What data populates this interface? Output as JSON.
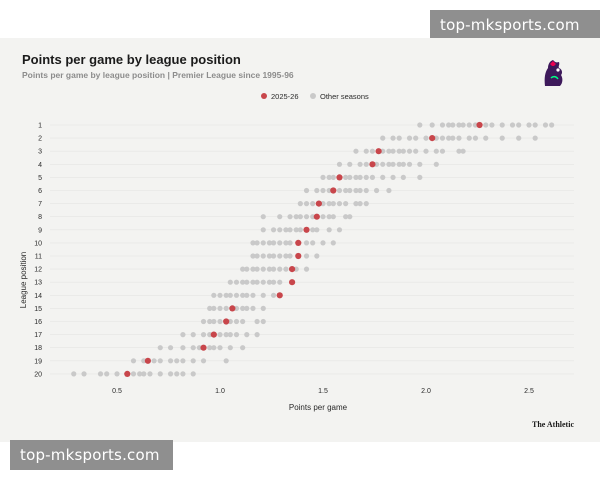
{
  "watermark_top": "top-mksports.com",
  "watermark_bottom": "top-mksports.com",
  "logo_icon": "premier-league-lion-icon",
  "chart_data": {
    "type": "scatter",
    "title": "Points per game by league position",
    "subtitle": "Points per game by league position | Premier League since 1995-96",
    "xlabel": "Points per game",
    "ylabel": "League position",
    "xlim": [
      0.2,
      2.7
    ],
    "xticks": [
      "0.5",
      "1.0",
      "1.5",
      "2.0",
      "2.5"
    ],
    "xtick_values": [
      0.5,
      1.0,
      1.5,
      2.0,
      2.5
    ],
    "positions": [
      1,
      2,
      3,
      4,
      5,
      6,
      7,
      8,
      9,
      10,
      11,
      12,
      13,
      14,
      15,
      16,
      17,
      18,
      19,
      20
    ],
    "grid": true,
    "legend_position": "top-center",
    "source": "The Athletic",
    "colors": {
      "current": "#c8464b",
      "other": "#c9c9c9"
    },
    "series": [
      {
        "name": "2025-26",
        "points": [
          {
            "position": 1,
            "ppg": 2.26
          },
          {
            "position": 2,
            "ppg": 2.03
          },
          {
            "position": 3,
            "ppg": 1.77
          },
          {
            "position": 4,
            "ppg": 1.74
          },
          {
            "position": 5,
            "ppg": 1.58
          },
          {
            "position": 6,
            "ppg": 1.55
          },
          {
            "position": 7,
            "ppg": 1.48
          },
          {
            "position": 8,
            "ppg": 1.47
          },
          {
            "position": 9,
            "ppg": 1.42
          },
          {
            "position": 10,
            "ppg": 1.38
          },
          {
            "position": 11,
            "ppg": 1.38
          },
          {
            "position": 12,
            "ppg": 1.35
          },
          {
            "position": 13,
            "ppg": 1.35
          },
          {
            "position": 14,
            "ppg": 1.29
          },
          {
            "position": 15,
            "ppg": 1.06
          },
          {
            "position": 16,
            "ppg": 1.03
          },
          {
            "position": 17,
            "ppg": 0.97
          },
          {
            "position": 18,
            "ppg": 0.92
          },
          {
            "position": 19,
            "ppg": 0.65
          },
          {
            "position": 20,
            "ppg": 0.55
          }
        ]
      },
      {
        "name": "Other seasons",
        "points_by_position": [
          {
            "position": 1,
            "ppg": [
              1.97,
              2.03,
              2.08,
              2.11,
              2.13,
              2.16,
              2.18,
              2.21,
              2.24,
              2.29,
              2.32,
              2.37,
              2.42,
              2.45,
              2.5,
              2.53,
              2.58,
              2.61
            ]
          },
          {
            "position": 2,
            "ppg": [
              1.79,
              1.84,
              1.87,
              1.92,
              1.95,
              2.0,
              2.05,
              2.08,
              2.11,
              2.13,
              2.16,
              2.21,
              2.24,
              2.29,
              2.37,
              2.45,
              2.53
            ]
          },
          {
            "position": 3,
            "ppg": [
              1.66,
              1.71,
              1.74,
              1.79,
              1.82,
              1.84,
              1.87,
              1.89,
              1.92,
              1.95,
              2.0,
              2.05,
              2.08,
              2.16,
              2.18
            ]
          },
          {
            "position": 4,
            "ppg": [
              1.58,
              1.63,
              1.68,
              1.71,
              1.76,
              1.79,
              1.82,
              1.84,
              1.87,
              1.89,
              1.92,
              1.97,
              2.05
            ]
          },
          {
            "position": 5,
            "ppg": [
              1.5,
              1.53,
              1.55,
              1.61,
              1.63,
              1.66,
              1.68,
              1.71,
              1.74,
              1.79,
              1.84,
              1.89,
              1.97
            ]
          },
          {
            "position": 6,
            "ppg": [
              1.42,
              1.47,
              1.5,
              1.53,
              1.58,
              1.61,
              1.63,
              1.66,
              1.68,
              1.71,
              1.76,
              1.82
            ]
          },
          {
            "position": 7,
            "ppg": [
              1.39,
              1.42,
              1.45,
              1.5,
              1.53,
              1.55,
              1.58,
              1.61,
              1.66,
              1.68,
              1.71
            ]
          },
          {
            "position": 8,
            "ppg": [
              1.21,
              1.29,
              1.34,
              1.37,
              1.39,
              1.42,
              1.45,
              1.5,
              1.53,
              1.55,
              1.61,
              1.63
            ]
          },
          {
            "position": 9,
            "ppg": [
              1.21,
              1.26,
              1.29,
              1.32,
              1.34,
              1.37,
              1.39,
              1.45,
              1.47,
              1.53,
              1.58
            ]
          },
          {
            "position": 10,
            "ppg": [
              1.16,
              1.18,
              1.21,
              1.24,
              1.26,
              1.29,
              1.32,
              1.34,
              1.42,
              1.45,
              1.5,
              1.55
            ]
          },
          {
            "position": 11,
            "ppg": [
              1.16,
              1.18,
              1.21,
              1.24,
              1.26,
              1.29,
              1.32,
              1.34,
              1.42,
              1.47
            ]
          },
          {
            "position": 12,
            "ppg": [
              1.11,
              1.13,
              1.16,
              1.18,
              1.21,
              1.24,
              1.26,
              1.29,
              1.32,
              1.37,
              1.42
            ]
          },
          {
            "position": 13,
            "ppg": [
              1.05,
              1.08,
              1.11,
              1.13,
              1.16,
              1.18,
              1.21,
              1.24,
              1.26,
              1.29
            ]
          },
          {
            "position": 14,
            "ppg": [
              0.97,
              1.0,
              1.03,
              1.05,
              1.08,
              1.11,
              1.13,
              1.16,
              1.21,
              1.26
            ]
          },
          {
            "position": 15,
            "ppg": [
              0.95,
              0.97,
              1.0,
              1.03,
              1.08,
              1.11,
              1.13,
              1.16,
              1.21
            ]
          },
          {
            "position": 16,
            "ppg": [
              0.92,
              0.95,
              0.97,
              1.0,
              1.05,
              1.08,
              1.11,
              1.18,
              1.21
            ]
          },
          {
            "position": 17,
            "ppg": [
              0.82,
              0.87,
              0.92,
              0.95,
              1.0,
              1.03,
              1.05,
              1.08,
              1.13,
              1.18
            ]
          },
          {
            "position": 18,
            "ppg": [
              0.71,
              0.76,
              0.82,
              0.87,
              0.9,
              0.95,
              0.97,
              1.0,
              1.05,
              1.11
            ]
          },
          {
            "position": 19,
            "ppg": [
              0.58,
              0.63,
              0.68,
              0.71,
              0.76,
              0.79,
              0.82,
              0.87,
              0.92,
              1.03
            ]
          },
          {
            "position": 20,
            "ppg": [
              0.29,
              0.34,
              0.42,
              0.45,
              0.5,
              0.55,
              0.58,
              0.61,
              0.63,
              0.66,
              0.71,
              0.76,
              0.79,
              0.82,
              0.87
            ]
          }
        ]
      }
    ]
  }
}
